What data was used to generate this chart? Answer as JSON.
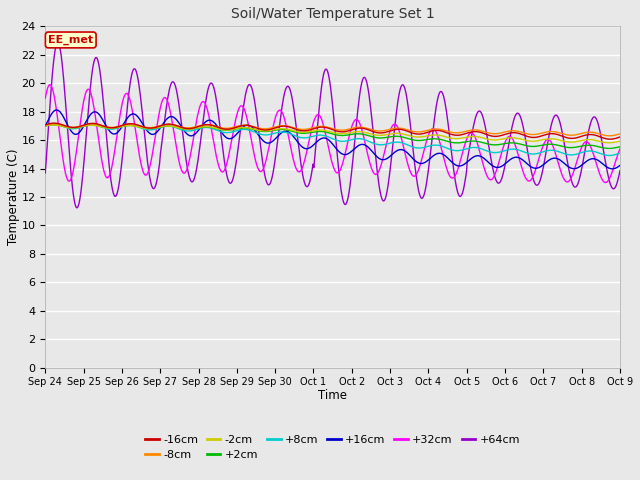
{
  "title": "Soil/Water Temperature Set 1",
  "xlabel": "Time",
  "ylabel": "Temperature (C)",
  "ylim": [
    0,
    24
  ],
  "yticks": [
    0,
    2,
    4,
    6,
    8,
    10,
    12,
    14,
    16,
    18,
    20,
    22,
    24
  ],
  "xtick_labels": [
    "Sep 24",
    "Sep 25",
    "Sep 26",
    "Sep 27",
    "Sep 28",
    "Sep 29",
    "Sep 30",
    "Oct 1",
    "Oct 2",
    "Oct 3",
    "Oct 4",
    "Oct 5",
    "Oct 6",
    "Oct 7",
    "Oct 8",
    "Oct 9"
  ],
  "series_colors": {
    "-16cm": "#cc0000",
    "-8cm": "#ff8800",
    "-2cm": "#cccc00",
    "+2cm": "#00bb00",
    "+8cm": "#00cccc",
    "+16cm": "#0000cc",
    "+32cm": "#ff00ff",
    "+64cm": "#9900cc"
  },
  "annotation_text": "EE_met",
  "annotation_box_color": "#ffffcc",
  "annotation_box_edge": "#cc0000",
  "fig_bg_color": "#e8e8e8",
  "plot_bg_color": "#e8e8e8",
  "grid_color": "#ffffff",
  "figwidth": 6.4,
  "figheight": 4.8,
  "dpi": 100
}
